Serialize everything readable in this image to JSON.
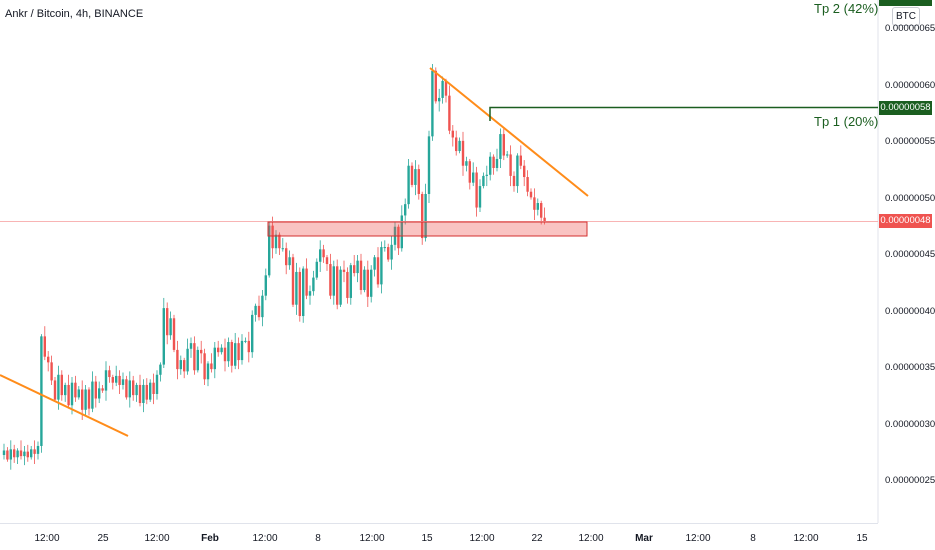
{
  "header": {
    "title": "Ankr / Bitcoin, 4h, BINANCE",
    "unit": "BTC"
  },
  "colors": {
    "up": "#26a69a",
    "down": "#ef5350",
    "trend": "#ff8c1a",
    "target": "#1b5e20",
    "support_fill": "rgba(239,83,80,0.35)",
    "support_line": "#d32f2f",
    "current_line": "#f8b4b4"
  },
  "annotations": {
    "tp1_label": "Tp 1 (20%)",
    "tp2_label": "Tp 2 (42%)",
    "tp1_price": "0.00000058",
    "current_price": "0.00000048"
  },
  "y_ticks": [
    "0.00000065",
    "0.00000060",
    "0.00000055",
    "0.00000050",
    "0.00000045",
    "0.00000040",
    "0.00000035",
    "0.00000030",
    "0.00000025"
  ],
  "x_ticks": [
    "12:00",
    "25",
    "12:00",
    "Feb",
    "12:00",
    "8",
    "12:00",
    "15",
    "12:00",
    "22",
    "12:00",
    "Mar",
    "12:00",
    "8",
    "12:00",
    "15"
  ],
  "chart_data": {
    "type": "candlestick",
    "ylim": [
      2e-07,
      6.667e-07
    ],
    "y_ticks": [
      6.5e-07,
      6e-07,
      5.5e-07,
      5e-07,
      4.5e-07,
      4e-07,
      3.5e-07,
      3e-07,
      2.5e-07
    ],
    "x_ticks": [
      "12:00",
      "25",
      "12:00",
      "Feb",
      "12:00",
      "8",
      "12:00",
      "15",
      "12:00",
      "22",
      "12:00",
      "Mar",
      "12:00",
      "8",
      "12:00",
      "15"
    ],
    "closes": [
      2.77e-07,
      2.69e-07,
      2.78e-07,
      2.71e-07,
      2.77e-07,
      2.72e-07,
      2.76e-07,
      2.71e-07,
      2.78e-07,
      2.74e-07,
      2.81e-07,
      3.78e-07,
      3.6e-07,
      3.55e-07,
      3.39e-07,
      3.22e-07,
      3.44e-07,
      3.26e-07,
      3.35e-07,
      3.17e-07,
      3.37e-07,
      3.24e-07,
      3.31e-07,
      3.13e-07,
      3.31e-07,
      3.14e-07,
      3.38e-07,
      3.23e-07,
      3.32e-07,
      3.3e-07,
      3.48e-07,
      3.42e-07,
      3.37e-07,
      3.43e-07,
      3.35e-07,
      3.4e-07,
      3.24e-07,
      3.39e-07,
      3.26e-07,
      3.35e-07,
      3.19e-07,
      3.35e-07,
      3.22e-07,
      3.37e-07,
      3.27e-07,
      3.44e-07,
      3.53e-07,
      4.03e-07,
      3.79e-07,
      3.94e-07,
      3.66e-07,
      3.49e-07,
      3.57e-07,
      3.47e-07,
      3.67e-07,
      3.72e-07,
      3.48e-07,
      3.66e-07,
      3.63e-07,
      3.4e-07,
      3.54e-07,
      3.49e-07,
      3.68e-07,
      3.64e-07,
      3.68e-07,
      3.56e-07,
      3.73e-07,
      3.52e-07,
      3.72e-07,
      3.57e-07,
      3.74e-07,
      3.74e-07,
      3.64e-07,
      3.97e-07,
      4.05e-07,
      3.95e-07,
      4.14e-07,
      4.32e-07,
      4.76e-07,
      4.56e-07,
      4.68e-07,
      4.56e-07,
      4.56e-07,
      4.41e-07,
      4.48e-07,
      4.06e-07,
      4.35e-07,
      3.96e-07,
      4.38e-07,
      4.14e-07,
      4.18e-07,
      4.3e-07,
      4.44e-07,
      4.55e-07,
      4.48e-07,
      4.42e-07,
      4.14e-07,
      4.4e-07,
      4.06e-07,
      4.37e-07,
      4.35e-07,
      4.12e-07,
      4.41e-07,
      4.34e-07,
      4.45e-07,
      4.19e-07,
      4.37e-07,
      4.13e-07,
      4.37e-07,
      4.48e-07,
      4.24e-07,
      4.57e-07,
      4.57e-07,
      4.46e-07,
      4.59e-07,
      4.75e-07,
      4.56e-07,
      4.85e-07,
      4.95e-07,
      5.29e-07,
      5.12e-07,
      5.26e-07,
      5.04e-07,
      4.65e-07,
      5.04e-07,
      5.55e-07,
      6.13e-07,
      5.86e-07,
      5.89e-07,
      6.04e-07,
      5.91e-07,
      5.6e-07,
      5.54e-07,
      5.42e-07,
      5.51e-07,
      5.29e-07,
      5.33e-07,
      5.14e-07,
      5.23e-07,
      4.92e-07,
      5.11e-07,
      5.2e-07,
      5.21e-07,
      5.37e-07,
      5.27e-07,
      5.35e-07,
      5.57e-07,
      5.38e-07,
      5.39e-07,
      5.2e-07,
      5.11e-07,
      5.38e-07,
      5.29e-07,
      5.19e-07,
      5.06e-07,
      5.01e-07,
      4.9e-07,
      4.96e-07,
      4.83e-07,
      4.8e-07
    ]
  }
}
